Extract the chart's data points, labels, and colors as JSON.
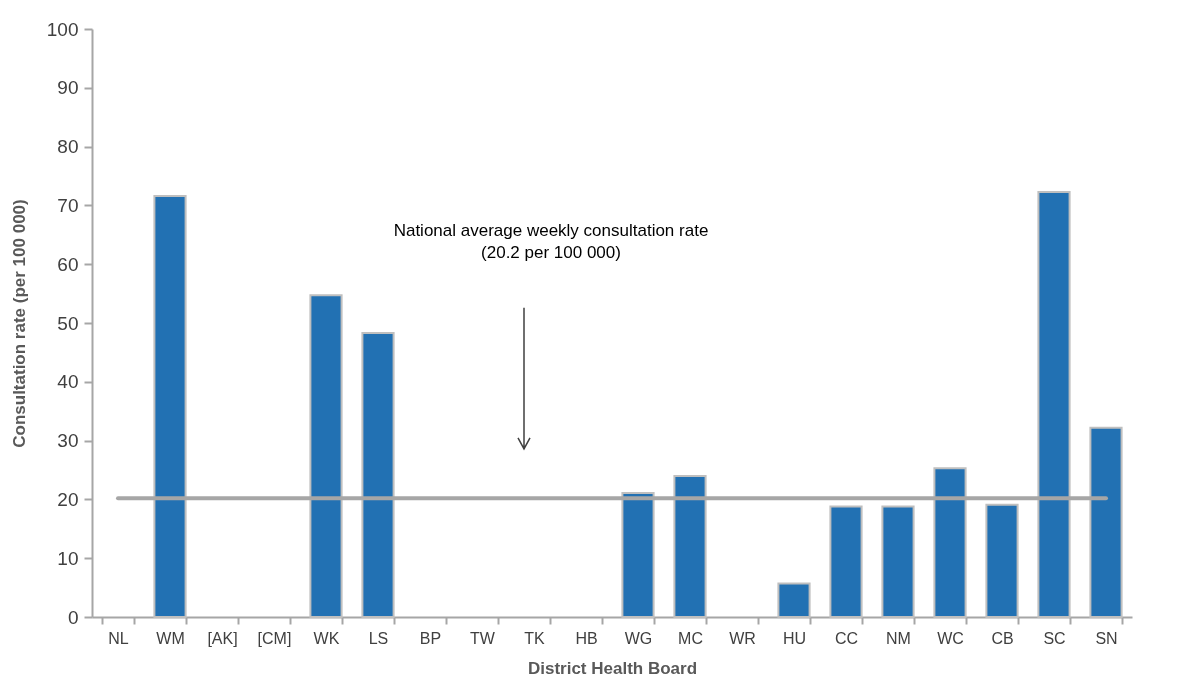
{
  "chart_data": {
    "type": "bar",
    "xlabel": "District Health Board",
    "ylabel": "Consultation rate (per 100 000)",
    "categories": [
      "NL",
      "WM",
      "[AK]",
      "[CM]",
      "WK",
      "LS",
      "BP",
      "TW",
      "TK",
      "HB",
      "WG",
      "MC",
      "WR",
      "HU",
      "CC",
      "NM",
      "WC",
      "CB",
      "SC",
      "SN"
    ],
    "values": [
      null,
      71.6,
      null,
      null,
      54.7,
      48.3,
      null,
      null,
      null,
      null,
      21.1,
      24.0,
      null,
      5.7,
      18.8,
      18.8,
      25.3,
      19.1,
      72.3,
      32.2
    ],
    "color": "#2271b3",
    "ylim": [
      0,
      100
    ],
    "yticks": [
      0,
      10,
      20,
      30,
      40,
      50,
      60,
      70,
      80,
      90,
      100
    ],
    "ref_lines": [
      {
        "axis": "y",
        "value": 20.2,
        "color": "#a6a6a6"
      }
    ],
    "annotations": [
      "National average weekly consultation rate\n(20.2 per 100 000)"
    ]
  }
}
